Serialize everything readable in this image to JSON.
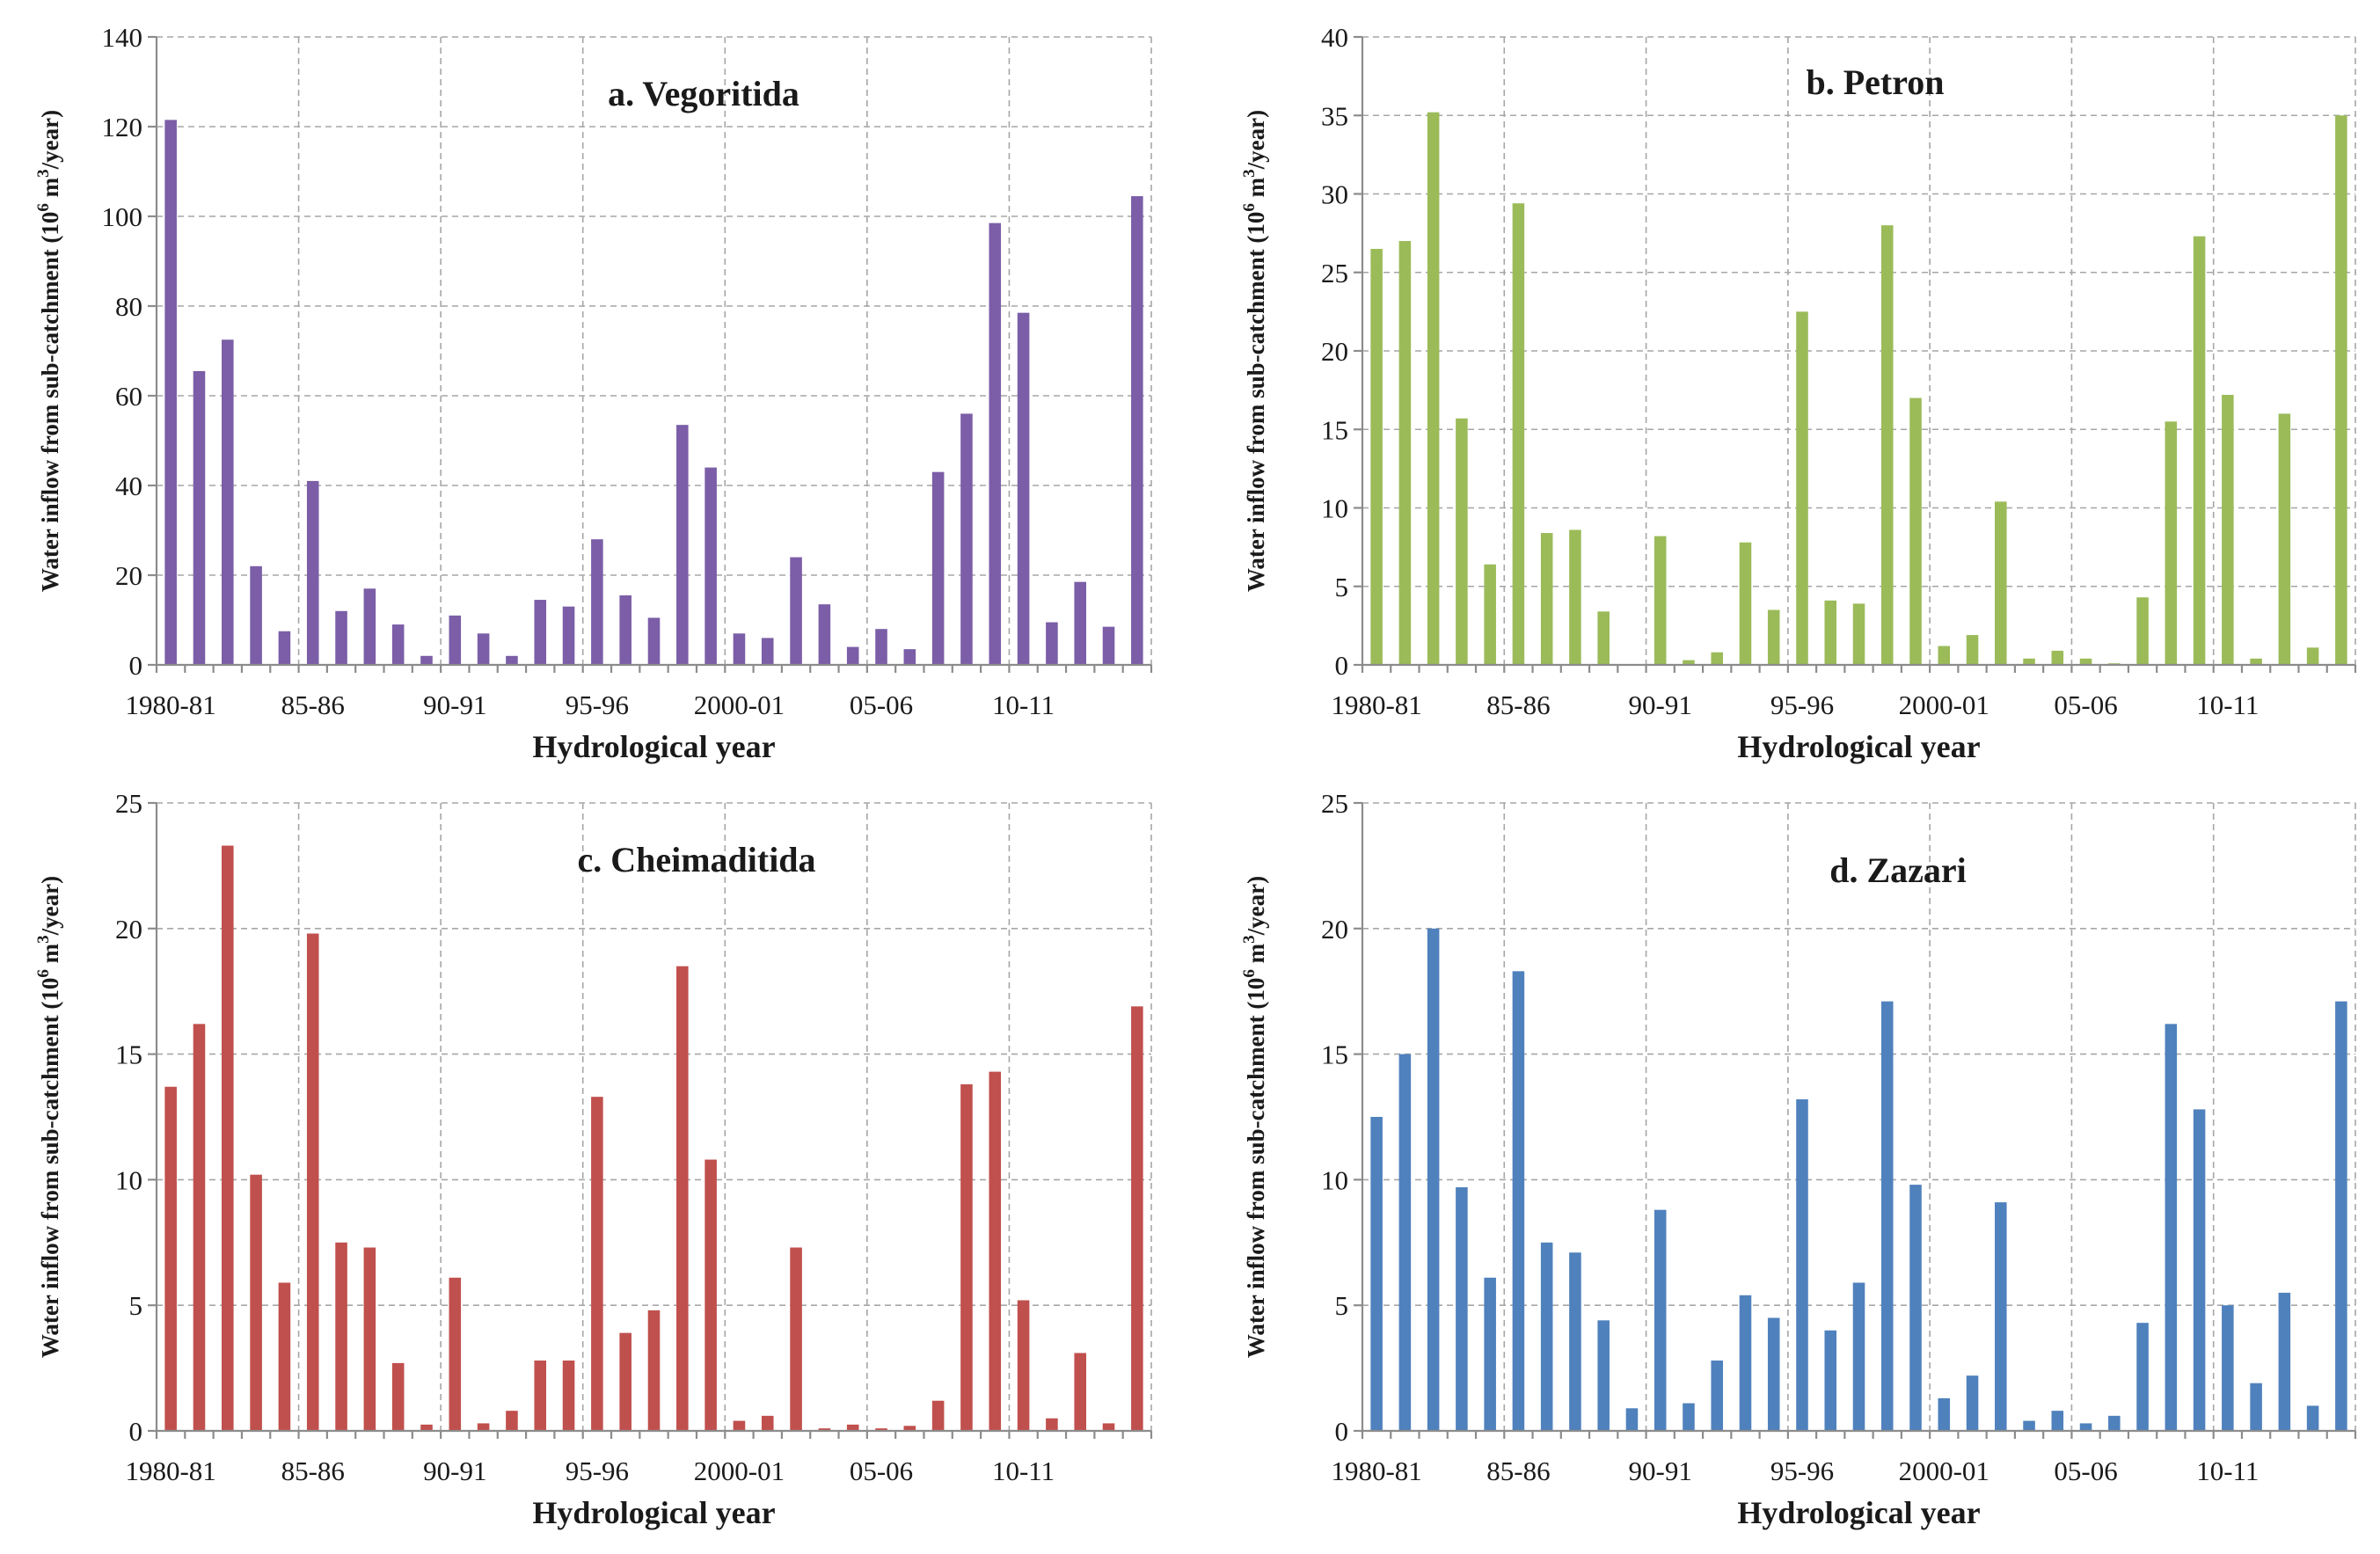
{
  "figure": {
    "xlabel": "Hydrological year",
    "ylabel_main": "Water inflow  from sub-catchment (10",
    "ylabel_sup": "6",
    "ylabel_mid": " m",
    "ylabel_sup2": "3",
    "ylabel_end": "/year)"
  },
  "chart_data": [
    {
      "type": "bar",
      "title": "a. Vegoritida",
      "color": "#7b5ea7",
      "xlabel": "Hydrological year",
      "ylabel": "Water inflow from sub-catchment (10^6 m^3/year)",
      "ylim": [
        0,
        140
      ],
      "yticks": [
        "0",
        "20",
        "40",
        "60",
        "80",
        "100",
        "120",
        "140"
      ],
      "xtick_labels": [
        "1980-81",
        "85-86",
        "90-91",
        "95-96",
        "2000-01",
        "05-06",
        "10-11"
      ],
      "grid": true,
      "values": [
        121.5,
        65.5,
        72.5,
        22,
        7.5,
        41,
        12,
        17,
        9,
        2,
        11,
        7,
        2,
        14.5,
        13,
        28,
        15.5,
        10.5,
        53.5,
        44,
        7,
        6,
        24,
        13.5,
        4,
        8,
        3.5,
        43,
        56,
        98.5,
        78.5,
        9.5,
        18.5,
        8.5,
        104.5
      ]
    },
    {
      "type": "bar",
      "title": "b. Petron",
      "color": "#9bbb59",
      "xlabel": "Hydrological year",
      "ylabel": "Water inflow from sub-catchment (10^6 m^3/year)",
      "ylim": [
        0,
        40
      ],
      "yticks": [
        "0",
        "5",
        "10",
        "15",
        "20",
        "25",
        "30",
        "35",
        "40"
      ],
      "xtick_labels": [
        "1980-81",
        "85-86",
        "90-91",
        "95-96",
        "2000-01",
        "05-06",
        "10-11"
      ],
      "grid": true,
      "values": [
        26.5,
        27,
        35.2,
        15.7,
        6.4,
        29.4,
        8.4,
        8.6,
        3.4,
        0.05,
        8.2,
        0.3,
        0.8,
        7.8,
        3.5,
        22.5,
        4.1,
        3.9,
        28,
        17,
        1.2,
        1.9,
        10.4,
        0.4,
        0.9,
        0.4,
        0.1,
        4.3,
        15.5,
        27.3,
        17.2,
        0.4,
        16,
        1.1,
        35
      ]
    },
    {
      "type": "bar",
      "title": "c. Cheimaditida",
      "color": "#c0504d",
      "xlabel": "Hydrological year",
      "ylabel": "Water inflow from sub-catchment (10^6 m^3/year)",
      "ylim": [
        0,
        25
      ],
      "yticks": [
        "0",
        "5",
        "10",
        "15",
        "20",
        "25"
      ],
      "xtick_labels": [
        "1980-81",
        "85-86",
        "90-91",
        "95-96",
        "2000-01",
        "05-06",
        "10-11"
      ],
      "grid": true,
      "values": [
        13.7,
        16.2,
        23.3,
        10.2,
        5.9,
        19.8,
        7.5,
        7.3,
        2.7,
        0.25,
        6.1,
        0.3,
        0.8,
        2.8,
        2.8,
        13.3,
        3.9,
        4.8,
        18.5,
        10.8,
        0.4,
        0.6,
        7.3,
        0.1,
        0.25,
        0.1,
        0.2,
        1.2,
        13.8,
        14.3,
        5.2,
        0.5,
        3.1,
        0.3,
        16.9
      ]
    },
    {
      "type": "bar",
      "title": "d. Zazari",
      "color": "#4f81bd",
      "xlabel": "Hydrological year",
      "ylabel": "Water inflow from sub-catchment (10^6 m^3/year)",
      "ylim": [
        0,
        25
      ],
      "yticks": [
        "0",
        "5",
        "10",
        "15",
        "20",
        "25"
      ],
      "xtick_labels": [
        "1980-81",
        "85-86",
        "90-91",
        "95-96",
        "2000-01",
        "05-06",
        "10-11"
      ],
      "grid": true,
      "values": [
        12.5,
        15,
        20,
        9.7,
        6.1,
        18.3,
        7.5,
        7.1,
        4.4,
        0.9,
        8.8,
        1.1,
        2.8,
        5.4,
        4.5,
        13.2,
        4,
        5.9,
        17.1,
        9.8,
        1.3,
        2.2,
        9.1,
        0.4,
        0.8,
        0.3,
        0.6,
        4.3,
        16.2,
        12.8,
        5,
        1.9,
        5.5,
        1,
        17.1
      ]
    }
  ]
}
